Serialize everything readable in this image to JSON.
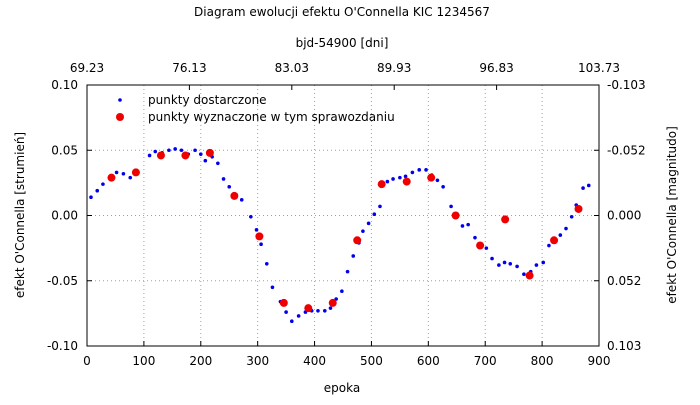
{
  "chart_data": {
    "type": "scatter",
    "title": "Diagram ewolucji efektu O'Connella KIC 1234567",
    "xlabel": "epoka",
    "ylabel": "efekt O'Connella [strumień]",
    "x2label": "bjd-54900 [dni]",
    "y2label": "efekt O'Connella [magnitudo]",
    "xlim": [
      0,
      900
    ],
    "ylim": [
      -0.1,
      0.1
    ],
    "x_ticks": [
      "0",
      "100",
      "200",
      "300",
      "400",
      "500",
      "600",
      "700",
      "800",
      "900"
    ],
    "y_ticks": [
      "0.10",
      "0.05",
      "0.00",
      "-0.05",
      "-0.10"
    ],
    "x2_ticks": [
      "69.23",
      "76.13",
      "83.03",
      "89.93",
      "96.83",
      "103.73"
    ],
    "y2_ticks": [
      "-0.103",
      "-0.052",
      "0.000",
      "0.052",
      "0.103"
    ],
    "grid": true,
    "legend_position": "top-left",
    "series": [
      {
        "name": "punkty dostarczone",
        "color": "#0000ee",
        "marker": "dot",
        "points": [
          [
            7,
            0.014
          ],
          [
            18,
            0.019
          ],
          [
            28,
            0.024
          ],
          [
            40,
            0.029
          ],
          [
            52,
            0.033
          ],
          [
            64,
            0.032
          ],
          [
            76,
            0.029
          ],
          [
            88,
            0.034
          ],
          [
            110,
            0.046
          ],
          [
            120,
            0.049
          ],
          [
            132,
            0.048
          ],
          [
            144,
            0.05
          ],
          [
            155,
            0.051
          ],
          [
            166,
            0.05
          ],
          [
            178,
            0.047
          ],
          [
            190,
            0.05
          ],
          [
            200,
            0.047
          ],
          [
            208,
            0.042
          ],
          [
            220,
            0.045
          ],
          [
            230,
            0.04
          ],
          [
            240,
            0.028
          ],
          [
            250,
            0.022
          ],
          [
            262,
            0.016
          ],
          [
            272,
            0.012
          ],
          [
            288,
            -0.001
          ],
          [
            298,
            -0.011
          ],
          [
            306,
            -0.022
          ],
          [
            316,
            -0.037
          ],
          [
            326,
            -0.055
          ],
          [
            340,
            -0.066
          ],
          [
            350,
            -0.074
          ],
          [
            360,
            -0.081
          ],
          [
            372,
            -0.077
          ],
          [
            384,
            -0.074
          ],
          [
            395,
            -0.073
          ],
          [
            406,
            -0.073
          ],
          [
            418,
            -0.073
          ],
          [
            428,
            -0.071
          ],
          [
            438,
            -0.064
          ],
          [
            448,
            -0.058
          ],
          [
            458,
            -0.043
          ],
          [
            468,
            -0.031
          ],
          [
            478,
            -0.021
          ],
          [
            485,
            -0.012
          ],
          [
            495,
            -0.006
          ],
          [
            505,
            0.001
          ],
          [
            515,
            0.007
          ],
          [
            528,
            0.026
          ],
          [
            538,
            0.028
          ],
          [
            550,
            0.029
          ],
          [
            560,
            0.03
          ],
          [
            572,
            0.033
          ],
          [
            584,
            0.035
          ],
          [
            596,
            0.035
          ],
          [
            606,
            0.031
          ],
          [
            616,
            0.027
          ],
          [
            626,
            0.022
          ],
          [
            640,
            0.007
          ],
          [
            650,
            0.0
          ],
          [
            660,
            -0.008
          ],
          [
            670,
            -0.007
          ],
          [
            682,
            -0.017
          ],
          [
            690,
            -0.022
          ],
          [
            702,
            -0.025
          ],
          [
            712,
            -0.033
          ],
          [
            724,
            -0.038
          ],
          [
            734,
            -0.036
          ],
          [
            744,
            -0.037
          ],
          [
            756,
            -0.039
          ],
          [
            768,
            -0.045
          ],
          [
            780,
            -0.043
          ],
          [
            790,
            -0.038
          ],
          [
            802,
            -0.036
          ],
          [
            812,
            -0.023
          ],
          [
            822,
            -0.02
          ],
          [
            832,
            -0.015
          ],
          [
            842,
            -0.01
          ],
          [
            852,
            -0.001
          ],
          [
            860,
            0.008
          ],
          [
            872,
            0.021
          ],
          [
            882,
            0.023
          ]
        ]
      },
      {
        "name": "punkty wyznaczone w tym sprawozdaniu",
        "color": "#ee0000",
        "marker": "circle",
        "points": [
          [
            43,
            0.029
          ],
          [
            86,
            0.033
          ],
          [
            130,
            0.046
          ],
          [
            173,
            0.046
          ],
          [
            216,
            0.048
          ],
          [
            259,
            0.015
          ],
          [
            303,
            -0.016
          ],
          [
            346,
            -0.067
          ],
          [
            389,
            -0.071
          ],
          [
            432,
            -0.067
          ],
          [
            475,
            -0.019
          ],
          [
            518,
            0.024
          ],
          [
            562,
            0.026
          ],
          [
            605,
            0.029
          ],
          [
            648,
            0.0
          ],
          [
            691,
            -0.023
          ],
          [
            735,
            -0.003
          ],
          [
            778,
            -0.046
          ],
          [
            821,
            -0.019
          ],
          [
            864,
            0.005
          ]
        ]
      }
    ]
  }
}
